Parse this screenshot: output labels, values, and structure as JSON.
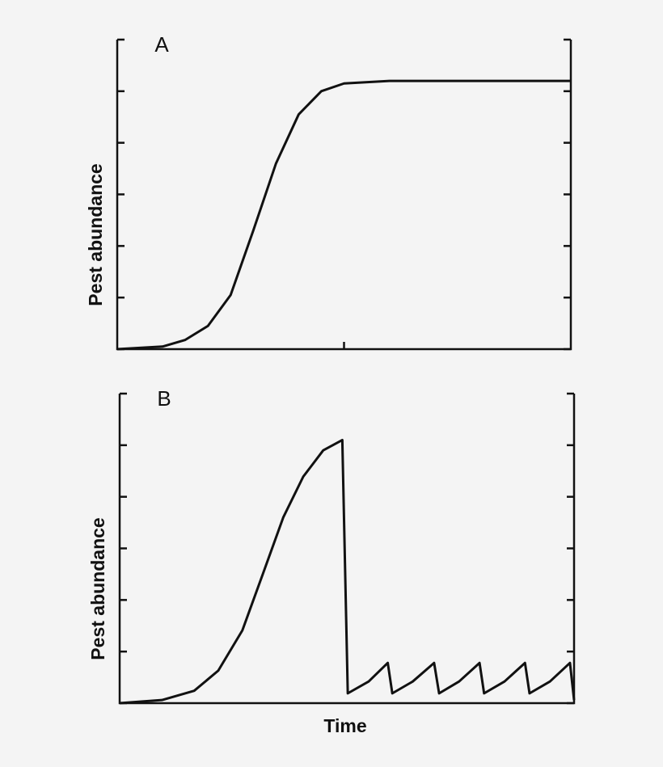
{
  "chart_data": [
    {
      "type": "line",
      "panel_label": "A",
      "ylabel": "Pest abundance",
      "x": [
        0,
        1,
        1.5,
        2,
        2.5,
        3,
        3.5,
        4,
        4.5,
        5,
        6,
        8,
        10
      ],
      "series": [
        {
          "color": "#111111",
          "values": [
            0,
            0.05,
            0.18,
            0.45,
            1.05,
            2.3,
            3.6,
            4.55,
            5.0,
            5.15,
            5.2,
            5.2,
            5.2
          ]
        }
      ],
      "xlim": [
        0,
        10
      ],
      "xticks": [
        5
      ],
      "ylim": [
        0,
        6
      ],
      "yticks": [
        0,
        1,
        2,
        3,
        4,
        5,
        6
      ]
    },
    {
      "type": "line",
      "panel_label": "B",
      "ylabel": "Pest abundance",
      "xlabel": "Time",
      "x": [
        0,
        0.93,
        1.64,
        2.17,
        2.7,
        3.15,
        3.6,
        4.04,
        4.48,
        4.9,
        5.02,
        5.48,
        5.9,
        6.0,
        6.45,
        6.92,
        7.03,
        7.47,
        7.92,
        8.02,
        8.47,
        8.92,
        9.02,
        9.47,
        9.91,
        10
      ],
      "series": [
        {
          "color": "#111111",
          "values": [
            0,
            0.06,
            0.24,
            0.63,
            1.41,
            2.5,
            3.6,
            4.39,
            4.9,
            5.1,
            0.19,
            0.42,
            0.78,
            0.19,
            0.42,
            0.78,
            0.19,
            0.42,
            0.78,
            0.19,
            0.42,
            0.78,
            0.19,
            0.42,
            0.78,
            0.06
          ]
        }
      ],
      "xlim": [
        0,
        10
      ],
      "xticks": [],
      "ylim": [
        0,
        6
      ],
      "yticks": [
        0,
        1,
        2,
        3,
        4,
        5,
        6
      ]
    }
  ]
}
